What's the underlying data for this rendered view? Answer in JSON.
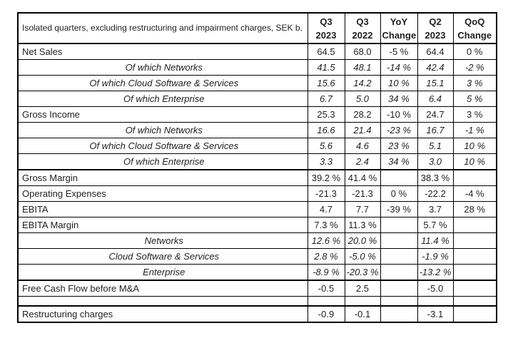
{
  "page": {
    "background": "#ffffff",
    "text_color": "#1f1f1f",
    "border_color": "#000000"
  },
  "table": {
    "caption": "Isolated quarters, excluding restructuring and impairment charges, SEK b.",
    "columns": [
      {
        "line1": "Q3",
        "line2": "2023"
      },
      {
        "line1": "Q3",
        "line2": "2022"
      },
      {
        "line1": "YoY",
        "line2": "Change"
      },
      {
        "line1": "Q2",
        "line2": "2023"
      },
      {
        "line1": "QoQ",
        "line2": "Change"
      }
    ],
    "rows": [
      {
        "label": "Net Sales",
        "style": "normal",
        "section_start": false,
        "values": [
          "64.5",
          "68.0",
          "-5 %",
          "64.4",
          "0 %"
        ]
      },
      {
        "label": "Of which Networks",
        "style": "sub",
        "section_start": false,
        "values": [
          "41.5",
          "48.1",
          "-14 %",
          "42.4",
          "-2 %"
        ]
      },
      {
        "label": "Of which Cloud Software & Services",
        "style": "sub",
        "section_start": false,
        "values": [
          "15.6",
          "14.2",
          "10 %",
          "15.1",
          "3 %"
        ]
      },
      {
        "label": "Of which Enterprise",
        "style": "sub",
        "section_start": false,
        "values": [
          "6.7",
          "5.0",
          "34 %",
          "6.4",
          "5 %"
        ]
      },
      {
        "label": "Gross Income",
        "style": "normal",
        "section_start": false,
        "values": [
          "25.3",
          "28.2",
          "-10 %",
          "24.7",
          "3 %"
        ]
      },
      {
        "label": "Of which Networks",
        "style": "sub",
        "section_start": false,
        "values": [
          "16.6",
          "21.4",
          "-23 %",
          "16.7",
          "-1 %"
        ]
      },
      {
        "label": "Of which Cloud Software & Services",
        "style": "sub",
        "section_start": false,
        "values": [
          "5.6",
          "4.6",
          "23 %",
          "5.1",
          "10 %"
        ]
      },
      {
        "label": "Of which Enterprise",
        "style": "sub",
        "section_start": false,
        "values": [
          "3.3",
          "2.4",
          "34 %",
          "3.0",
          "10 %"
        ]
      },
      {
        "label": "Gross Margin",
        "style": "normal",
        "section_start": true,
        "values": [
          "39.2 %",
          "41.4 %",
          "",
          "38.3 %",
          ""
        ]
      },
      {
        "label": "Operating Expenses",
        "style": "normal",
        "section_start": false,
        "values": [
          "-21.3",
          "-21.3",
          "0 %",
          "-22.2",
          "-4 %"
        ]
      },
      {
        "label": "EBITA",
        "style": "normal",
        "section_start": false,
        "values": [
          "4.7",
          "7.7",
          "-39 %",
          "3.7",
          "28 %"
        ]
      },
      {
        "label": "EBITA Margin",
        "style": "normal",
        "section_start": false,
        "values": [
          "7.3 %",
          "11.3 %",
          "",
          "5.7 %",
          ""
        ]
      },
      {
        "label": "Networks",
        "style": "sub",
        "section_start": false,
        "values": [
          "12.6 %",
          "20.0 %",
          "",
          "11.4 %",
          ""
        ]
      },
      {
        "label": "Cloud Software & Services",
        "style": "sub",
        "section_start": false,
        "values": [
          "2.8 %",
          "-5.0 %",
          "",
          "-1.9 %",
          ""
        ]
      },
      {
        "label": "Enterprise",
        "style": "sub",
        "section_start": false,
        "values": [
          "-8.9 %",
          "-20.3 %",
          "",
          "-13.2 %",
          ""
        ]
      },
      {
        "label": "Free Cash Flow before M&A",
        "style": "normal",
        "section_start": true,
        "values": [
          "-0.5",
          "2.5",
          "",
          "-5.0",
          ""
        ]
      },
      {
        "label": "",
        "style": "empty",
        "section_start": false,
        "values": [
          "",
          "",
          "",
          "",
          ""
        ]
      },
      {
        "label": "Restructuring charges",
        "style": "normal",
        "section_start": true,
        "values": [
          "-0.9",
          "-0.1",
          "",
          "-3.1",
          ""
        ]
      }
    ]
  }
}
